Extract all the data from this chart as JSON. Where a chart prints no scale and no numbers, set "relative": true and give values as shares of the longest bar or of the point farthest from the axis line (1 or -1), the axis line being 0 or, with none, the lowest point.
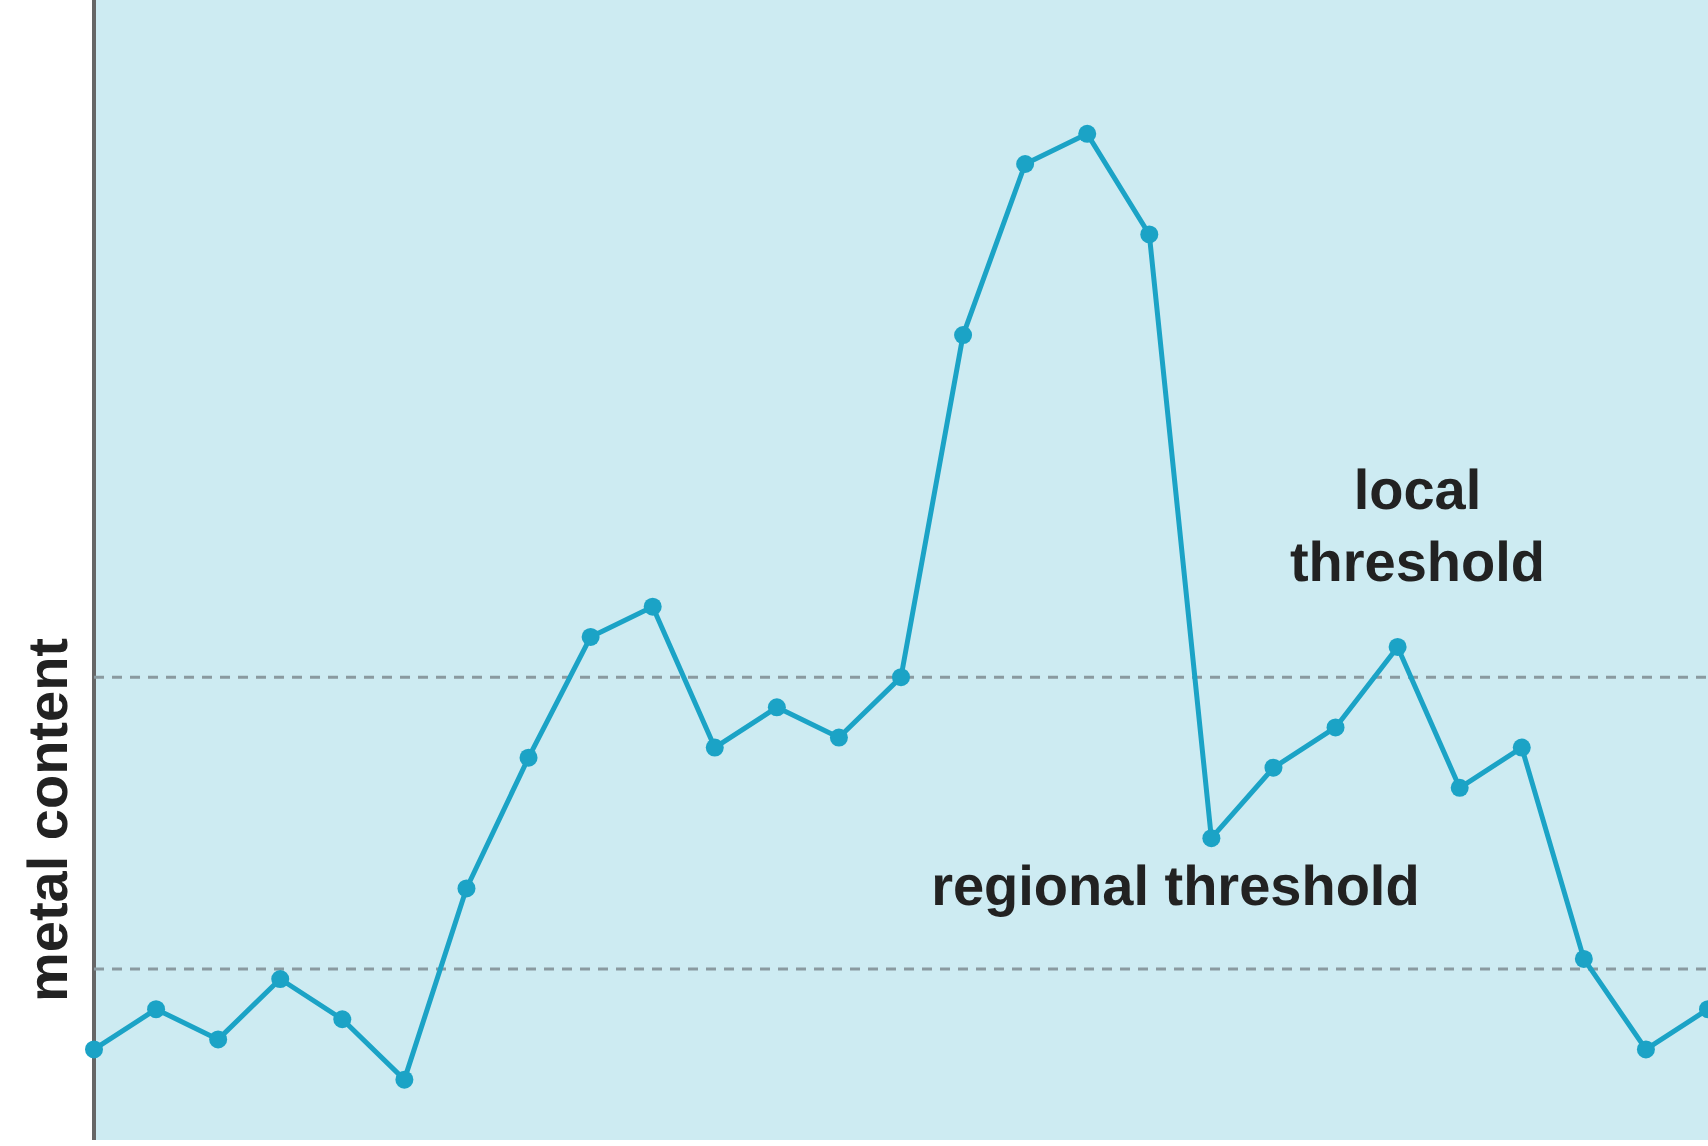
{
  "chart_data": {
    "type": "line",
    "ylabel": "metal content",
    "relative": true,
    "marker": "circle",
    "line_style": "solid",
    "legend": false,
    "tick_labels": false,
    "categories": [
      null,
      null,
      null,
      null,
      null,
      null,
      null,
      null,
      null,
      null,
      null,
      null,
      null,
      null,
      null,
      null,
      null,
      null,
      null,
      null,
      null,
      null,
      null,
      null,
      null,
      null,
      null
    ],
    "series": [
      {
        "color": "#1ba3c6",
        "values": [
          0.09,
          0.13,
          0.1,
          0.16,
          0.12,
          0.06,
          0.25,
          0.38,
          0.5,
          0.53,
          0.39,
          0.43,
          0.4,
          0.46,
          0.8,
          0.97,
          1,
          0.9,
          0.3,
          0.37,
          0.41,
          0.49,
          0.35,
          0.39,
          0.18,
          0.09,
          0.13
        ]
      }
    ],
    "ref_lines": [
      {
        "axis": "y",
        "value": 0.46,
        "label": "local threshold",
        "color": "#8a9aa0",
        "line_style": "dashed"
      },
      {
        "axis": "y",
        "value": 0.17,
        "label": "regional threshold",
        "color": "#8a9aa0",
        "line_style": "dashed"
      }
    ]
  }
}
